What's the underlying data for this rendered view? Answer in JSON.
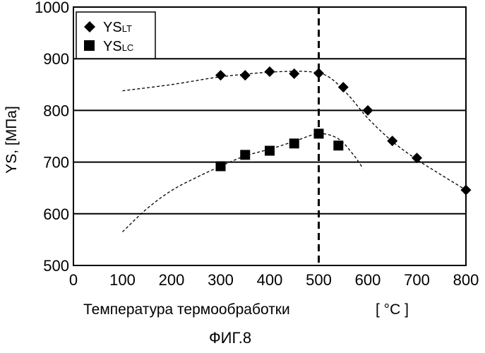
{
  "chart_data": {
    "type": "scatter",
    "title": "",
    "xlabel": "Температура термообработки",
    "xlabel_unit": "[ °C ]",
    "ylabel": "YS, [МПа]",
    "xlim": [
      0,
      800
    ],
    "ylim": [
      500,
      1000
    ],
    "x_ticks": [
      0,
      100,
      200,
      300,
      400,
      500,
      600,
      700,
      800
    ],
    "y_ticks": [
      500,
      600,
      700,
      800,
      900,
      1000
    ],
    "grid": "horizontal",
    "legend_position": "top-left",
    "series": [
      {
        "name_main": "YS",
        "name_sub": "LT",
        "marker": "diamond",
        "x": [
          300,
          350,
          400,
          450,
          500,
          550,
          600,
          650,
          700,
          800
        ],
        "y": [
          868,
          868,
          875,
          871,
          872,
          845,
          800,
          741,
          708,
          646
        ],
        "trend_x": [
          100,
          200,
          300,
          400,
          480,
          520,
          560,
          600,
          650,
          700,
          750,
          800
        ],
        "trend_y": [
          838,
          850,
          865,
          874,
          875,
          865,
          830,
          785,
          740,
          705,
          675,
          646
        ]
      },
      {
        "name_main": "YS",
        "name_sub": "LC",
        "marker": "square",
        "x": [
          300,
          350,
          400,
          450,
          500,
          540
        ],
        "y": [
          692,
          714,
          722,
          736,
          755,
          732
        ],
        "trend_x": [
          100,
          150,
          200,
          250,
          300,
          350,
          400,
          450,
          500,
          540,
          570,
          590
        ],
        "trend_y": [
          565,
          610,
          645,
          670,
          692,
          712,
          725,
          740,
          755,
          745,
          715,
          688
        ]
      }
    ],
    "vline_x": 500,
    "figure_label": "ФИГ.8"
  }
}
